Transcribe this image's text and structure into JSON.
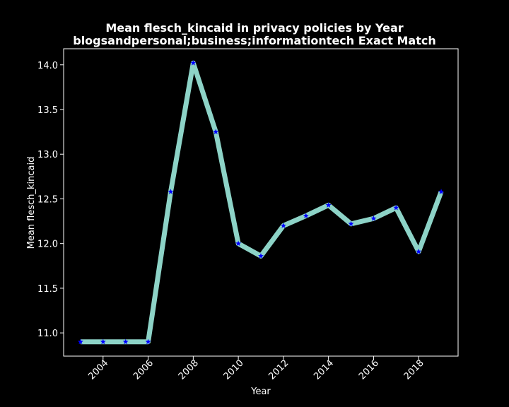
{
  "chart_data": {
    "type": "line",
    "title_lines": [
      "Mean flesch_kincaid in privacy policies by Year",
      "blogsandpersonal;business;informationtech Exact Match"
    ],
    "xlabel": "Year",
    "ylabel": "Mean flesch_kincaid",
    "x": [
      2003,
      2004,
      2005,
      2006,
      2007,
      2008,
      2009,
      2010,
      2011,
      2012,
      2013,
      2014,
      2015,
      2016,
      2017,
      2018,
      2019
    ],
    "series": [
      {
        "values": [
          10.9,
          10.9,
          10.9,
          10.9,
          12.58,
          14.02,
          13.25,
          12.0,
          11.86,
          12.2,
          12.31,
          12.43,
          12.22,
          12.28,
          12.4,
          11.91,
          12.58
        ]
      }
    ],
    "xlim": [
      2002.25,
      2019.75
    ],
    "ylim": [
      10.74,
      14.18
    ],
    "xticks": [
      2004,
      2006,
      2008,
      2010,
      2012,
      2014,
      2016,
      2018
    ],
    "xtick_labels": [
      "2004",
      "2006",
      "2008",
      "2010",
      "2012",
      "2014",
      "2016",
      "2018"
    ],
    "yticks": [
      11.0,
      11.5,
      12.0,
      12.5,
      13.0,
      13.5,
      14.0
    ],
    "ytick_labels": [
      "11.0",
      "11.5",
      "12.0",
      "12.5",
      "13.0",
      "13.5",
      "14.0"
    ],
    "grid": false,
    "colors": {
      "background": "#000000",
      "line": "#8dd3c7",
      "marker": "#0000ff",
      "text": "#ffffff"
    },
    "marker": "star"
  }
}
